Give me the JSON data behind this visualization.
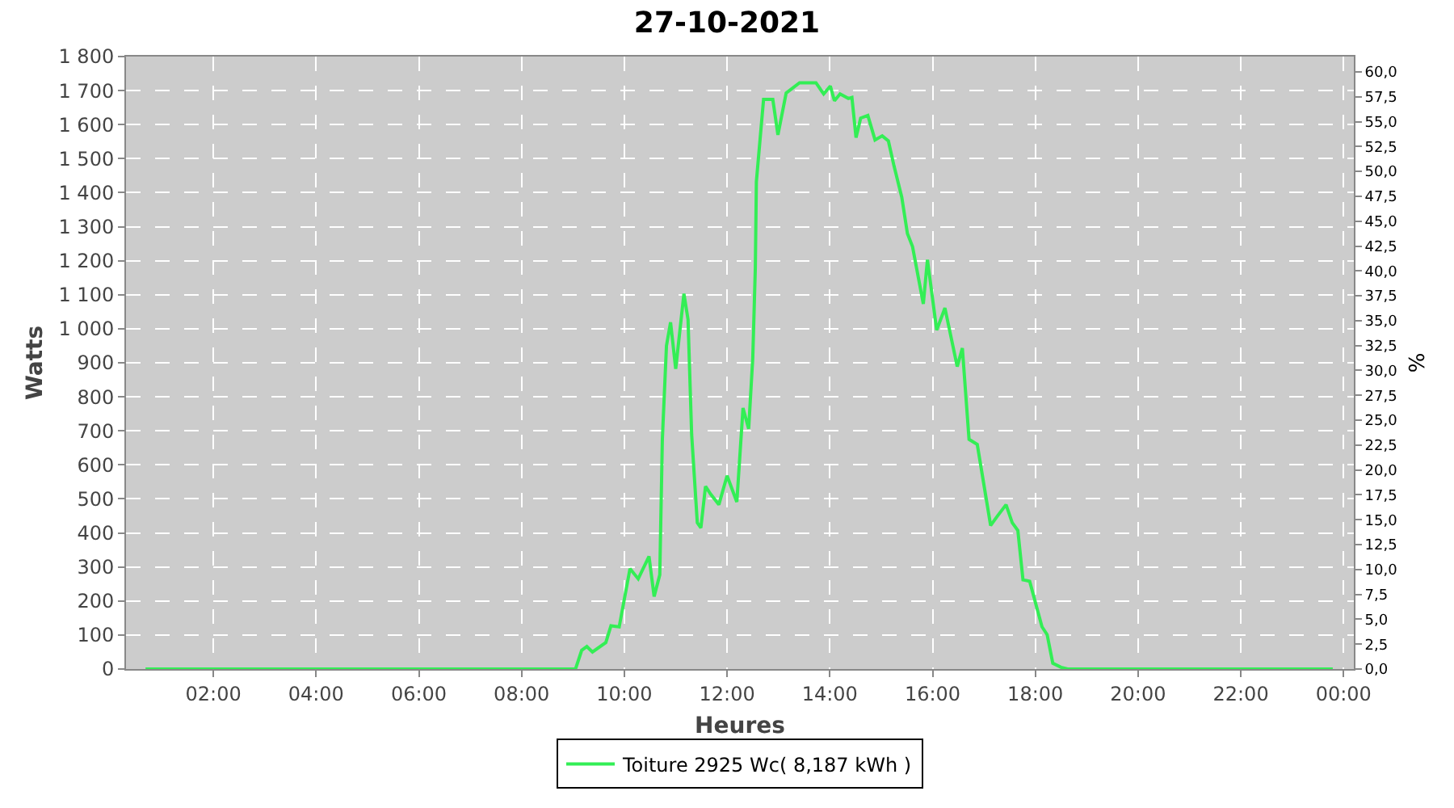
{
  "chart_data": {
    "type": "line",
    "title": "27-10-2021",
    "xlabel": "Heures",
    "ylabel": "Watts",
    "y2label": "%",
    "x": [
      0.68,
      9.05,
      9.17,
      9.27,
      9.38,
      9.64,
      9.74,
      9.9,
      10.11,
      10.27,
      10.48,
      10.58,
      10.69,
      10.74,
      10.82,
      10.9,
      11.0,
      11.16,
      11.24,
      11.31,
      11.42,
      11.49,
      11.58,
      11.68,
      11.84,
      12.0,
      12.19,
      12.31,
      12.42,
      12.5,
      12.55,
      12.57,
      12.71,
      12.89,
      12.99,
      13.15,
      13.41,
      13.73,
      13.88,
      14.01,
      14.09,
      14.2,
      14.36,
      14.43,
      14.51,
      14.6,
      14.74,
      14.88,
      15.02,
      15.14,
      15.25,
      15.4,
      15.51,
      15.61,
      15.82,
      15.9,
      16.08,
      16.24,
      16.48,
      16.58,
      16.71,
      16.87,
      17.13,
      17.26,
      17.43,
      17.55,
      17.66,
      17.76,
      17.89,
      18.13,
      18.23,
      18.34,
      18.5,
      18.63,
      23.79
    ],
    "series": [
      {
        "name": "Toiture 2925 Wc( 8,187 kWh )",
        "color": "#33ee55",
        "values": [
          0,
          0,
          55,
          66,
          50,
          78,
          127,
          124,
          295,
          265,
          331,
          213,
          277,
          675,
          950,
          1019,
          882,
          1103,
          1027,
          690,
          430,
          415,
          537,
          514,
          483,
          568,
          491,
          767,
          706,
          914,
          1180,
          1432,
          1674,
          1674,
          1570,
          1693,
          1723,
          1723,
          1690,
          1713,
          1670,
          1690,
          1677,
          1680,
          1562,
          1619,
          1627,
          1555,
          1567,
          1552,
          1478,
          1387,
          1280,
          1241,
          1073,
          1203,
          996,
          1061,
          889,
          943,
          675,
          660,
          422,
          449,
          483,
          430,
          407,
          262,
          258,
          124,
          101,
          17,
          5,
          0,
          0
        ]
      }
    ],
    "xlim": [
      0.3,
      24.2
    ],
    "xticks": [
      {
        "value": 2,
        "label": "02:00"
      },
      {
        "value": 4,
        "label": "04:00"
      },
      {
        "value": 6,
        "label": "06:00"
      },
      {
        "value": 8,
        "label": "08:00"
      },
      {
        "value": 10,
        "label": "10:00"
      },
      {
        "value": 12,
        "label": "12:00"
      },
      {
        "value": 14,
        "label": "14:00"
      },
      {
        "value": 16,
        "label": "16:00"
      },
      {
        "value": 18,
        "label": "18:00"
      },
      {
        "value": 20,
        "label": "20:00"
      },
      {
        "value": 22,
        "label": "22:00"
      },
      {
        "value": 24,
        "label": "00:00"
      }
    ],
    "ylim": [
      0,
      1800
    ],
    "yticks": [
      0,
      100,
      200,
      300,
      400,
      500,
      600,
      700,
      800,
      900,
      {
        "value": 1000,
        "label": "1 000"
      },
      {
        "value": 1100,
        "label": "1 100"
      },
      {
        "value": 1200,
        "label": "1 200"
      },
      {
        "value": 1300,
        "label": "1 300"
      },
      {
        "value": 1400,
        "label": "1 400"
      },
      {
        "value": 1500,
        "label": "1 500"
      },
      {
        "value": 1600,
        "label": "1 600"
      },
      {
        "value": 1700,
        "label": "1 700"
      },
      {
        "value": 1800,
        "label": "1 800"
      }
    ],
    "y2lim": [
      0,
      61.54
    ],
    "y2ticks": [
      {
        "value": 0,
        "label": "0,0"
      },
      {
        "value": 2.5,
        "label": "2,5"
      },
      {
        "value": 5,
        "label": "5,0"
      },
      {
        "value": 7.5,
        "label": "7,5"
      },
      {
        "value": 10,
        "label": "10,0"
      },
      {
        "value": 12.5,
        "label": "12,5"
      },
      {
        "value": 15,
        "label": "15,0"
      },
      {
        "value": 17.5,
        "label": "17,5"
      },
      {
        "value": 20,
        "label": "20,0"
      },
      {
        "value": 22.5,
        "label": "22,5"
      },
      {
        "value": 25,
        "label": "25,0"
      },
      {
        "value": 27.5,
        "label": "27,5"
      },
      {
        "value": 30,
        "label": "30,0"
      },
      {
        "value": 32.5,
        "label": "32,5"
      },
      {
        "value": 35,
        "label": "35,0"
      },
      {
        "value": 37.5,
        "label": "37,5"
      },
      {
        "value": 40,
        "label": "40,0"
      },
      {
        "value": 42.5,
        "label": "42,5"
      },
      {
        "value": 45,
        "label": "45,0"
      },
      {
        "value": 47.5,
        "label": "47,5"
      },
      {
        "value": 50,
        "label": "50,0"
      },
      {
        "value": 52.5,
        "label": "52,5"
      },
      {
        "value": 55,
        "label": "55,0"
      },
      {
        "value": 57.5,
        "label": "57,5"
      },
      {
        "value": 60,
        "label": "60,0"
      }
    ],
    "grid": true,
    "legend": "bottom",
    "line_style": "solid"
  }
}
